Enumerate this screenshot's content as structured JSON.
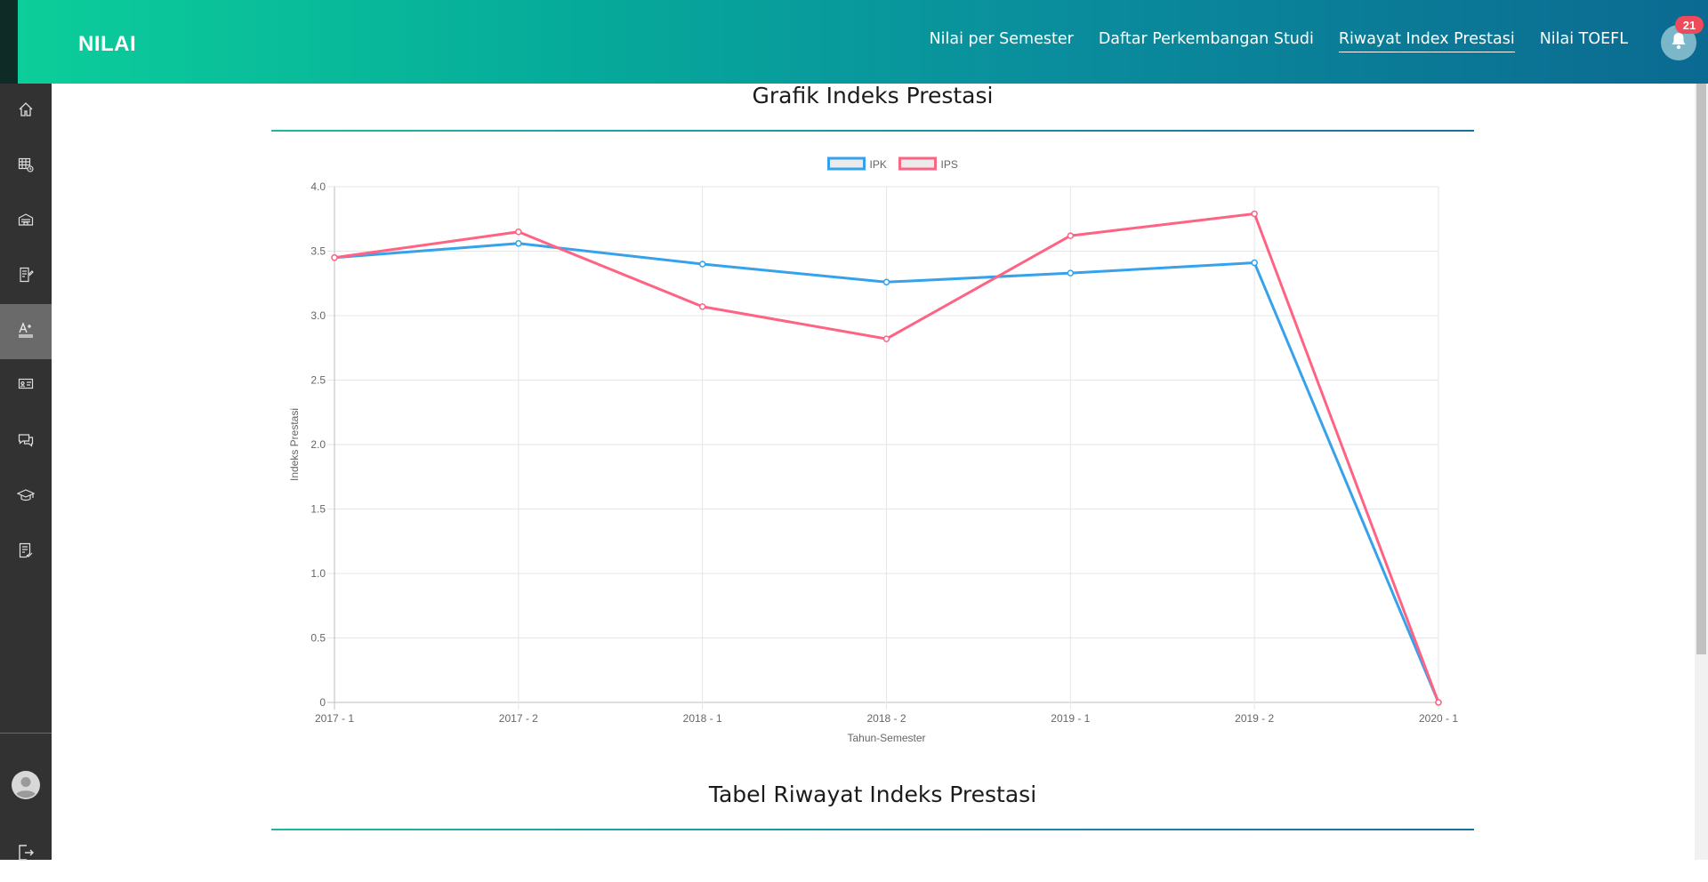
{
  "header": {
    "brand": "NILAI",
    "nav": [
      {
        "label": "Nilai per Semester",
        "active": false
      },
      {
        "label": "Daftar Perkembangan Studi",
        "active": false
      },
      {
        "label": "Riwayat Index Prestasi",
        "active": true
      },
      {
        "label": "Nilai TOEFL",
        "active": false
      }
    ],
    "notification_count": "21"
  },
  "sidebar": {
    "items": [
      {
        "icon": "home-icon"
      },
      {
        "icon": "calendar-clock-icon"
      },
      {
        "icon": "building-icon"
      },
      {
        "icon": "document-edit-icon"
      },
      {
        "icon": "grade-icon",
        "active": true
      },
      {
        "icon": "presentation-icon"
      },
      {
        "icon": "chat-icon"
      },
      {
        "icon": "graduation-cap-icon"
      },
      {
        "icon": "checklist-icon"
      }
    ],
    "bottom": [
      {
        "icon": "avatar"
      },
      {
        "icon": "logout-icon"
      }
    ]
  },
  "sections": {
    "chart_title": "Grafik Indeks Prestasi",
    "table_title": "Tabel Riwayat Indeks Prestasi"
  },
  "chart_data": {
    "type": "line",
    "categories": [
      "2017 - 1",
      "2017 - 2",
      "2018 - 1",
      "2018 - 2",
      "2019 - 1",
      "2019 - 2",
      "2020 - 1"
    ],
    "series": [
      {
        "name": "IPK",
        "color": "#36a2eb",
        "values": [
          3.45,
          3.56,
          3.4,
          3.26,
          3.33,
          3.41,
          0
        ]
      },
      {
        "name": "IPS",
        "color": "#ff6384",
        "values": [
          3.45,
          3.65,
          3.07,
          2.82,
          3.62,
          3.79,
          0
        ]
      }
    ],
    "xlabel": "Tahun-Semester",
    "ylabel": "Indeks Prestasi",
    "ylim": [
      0,
      4.0
    ],
    "yticks": [
      "0",
      "0.5",
      "1.0",
      "1.5",
      "2.0",
      "2.5",
      "3.0",
      "3.5",
      "4.0"
    ],
    "grid": true,
    "legend": "top"
  }
}
